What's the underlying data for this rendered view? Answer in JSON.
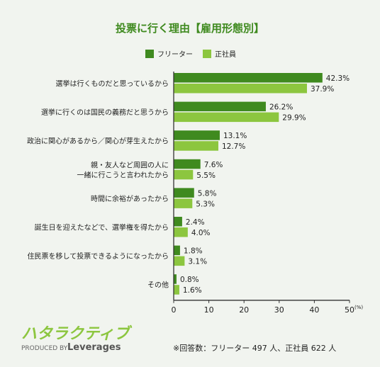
{
  "colors": {
    "freeter": "#3f8a1f",
    "employee": "#8cc63f",
    "title": "#3f8a1f",
    "text": "#222222"
  },
  "chart_data": {
    "type": "bar",
    "orientation": "horizontal",
    "title": "投票に行く理由【雇用形態別】",
    "categories": [
      "選挙は行くものだと思っているから",
      "選挙に行くのは国民の義務だと思うから",
      "政治に関心があるから／関心が芽生えたから",
      "親・友人など周囲の人に\n一緒に行こうと言われたから",
      "時間に余裕があったから",
      "誕生日を迎えたなどで、選挙権を得たから",
      "住民票を移して投票できるようになったから",
      "その他"
    ],
    "series": [
      {
        "name": "フリーター",
        "values": [
          42.3,
          26.2,
          13.1,
          7.6,
          5.8,
          2.4,
          1.8,
          0.8
        ]
      },
      {
        "name": "正社員",
        "values": [
          37.9,
          29.9,
          12.7,
          5.5,
          5.3,
          4.0,
          3.1,
          1.6
        ]
      }
    ],
    "xlim": [
      0,
      50
    ],
    "xticks": [
      0,
      10,
      20,
      30,
      40,
      50
    ],
    "x_unit": "(%)",
    "value_suffix": "%",
    "legend_position": "top"
  },
  "footnote": "※回答数：フリーター 497 人、正社員 622 人",
  "logo": {
    "name": "ハタラクティブ",
    "produced_by": "PRODUCED BY",
    "company": "Leverages"
  }
}
